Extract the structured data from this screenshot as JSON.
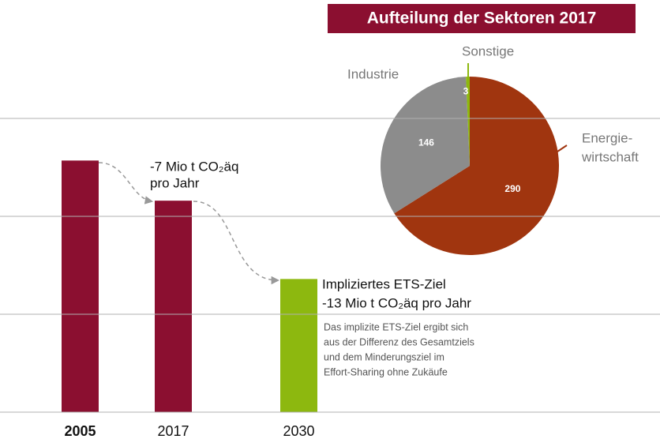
{
  "chart_data": [
    {
      "type": "bar",
      "categories": [
        "2005",
        "2017",
        "2030"
      ],
      "values": [
        514,
        432,
        272
      ],
      "colors": [
        "#8b0f30",
        "#8b0f30",
        "#8db80f"
      ],
      "ylim": [
        0,
        840
      ],
      "yticks": [
        0,
        200,
        400,
        600
      ],
      "grid": true,
      "annotations": [
        {
          "lines": [
            "-7 Mio t CO₂äq",
            "pro Jahr"
          ]
        },
        {
          "lines": [
            "Impliziertes ETS-Ziel",
            "-13 Mio t CO₂äq pro Jahr"
          ]
        },
        {
          "lines": [
            "Das implizite ETS-Ziel ergibt sich",
            "aus der Differenz des Gesamtziels",
            "und dem Minderungsziel im",
            "Effort-Sharing ohne Zukäufe"
          ]
        }
      ]
    },
    {
      "type": "pie",
      "title": "Aufteilung der Sektoren 2017",
      "labels": [
        [
          "Energie-",
          "wirtschaft"
        ],
        [
          "Industrie"
        ],
        [
          "Sonstige"
        ]
      ],
      "values": [
        290,
        146,
        3
      ],
      "colors": [
        "#a0350f",
        "#8c8c8c",
        "#8db80f"
      ]
    }
  ]
}
